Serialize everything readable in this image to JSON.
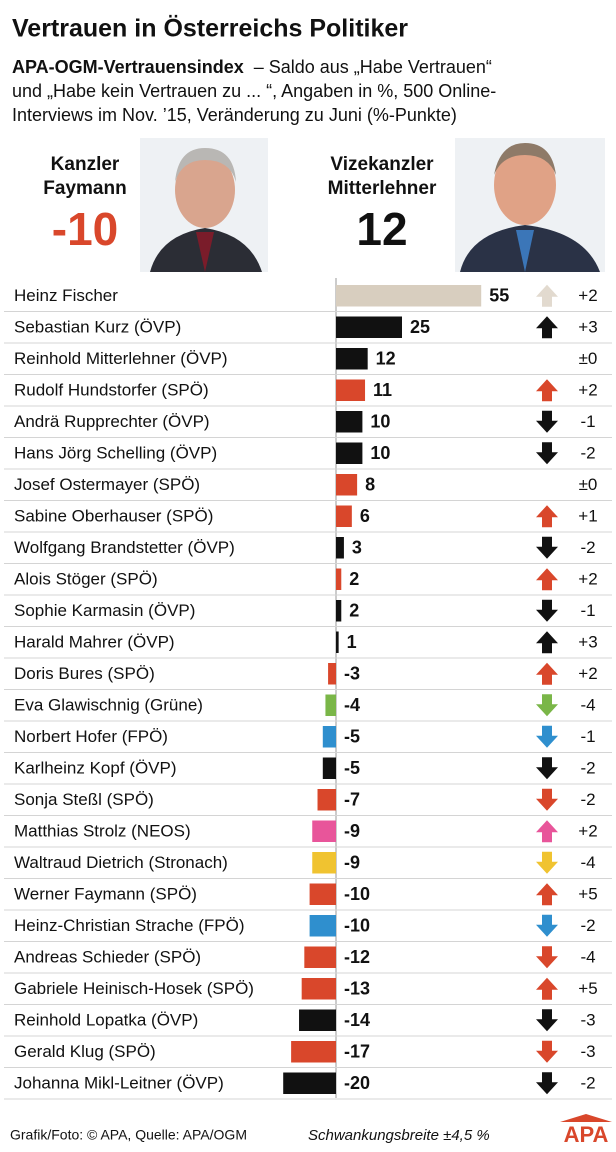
{
  "chart_data": {
    "type": "diverging-bar",
    "title": "Vertrauen in Österreichs Politiker",
    "subtitle": {
      "lead": "APA-OGM-Vertrauensindex",
      "lines": [
        "– Saldo aus „Habe Vertrauen“",
        "und „Habe kein Vertrauen zu ... “, Angaben in %, 500 Online-",
        "Interviews im Nov. ’15, Veränderung zu Juni (%-Punkte)"
      ]
    },
    "featured": [
      {
        "role": "Kanzler",
        "name": "Faymann",
        "value": -10,
        "color": "#d9472b"
      },
      {
        "role": "Vizekanzler",
        "name": "Mitterlehner",
        "value": 12,
        "color": "#111111"
      }
    ],
    "categories": [
      "Heinz Fischer",
      "Sebastian Kurz (ÖVP)",
      "Reinhold Mitterlehner (ÖVP)",
      "Rudolf Hundstorfer (SPÖ)",
      "Andrä Rupprechter (ÖVP)",
      "Hans Jörg Schelling (ÖVP)",
      "Josef Ostermayer (SPÖ)",
      "Sabine Oberhauser (SPÖ)",
      "Wolfgang Brandstetter (ÖVP)",
      "Alois Stöger (SPÖ)",
      "Sophie Karmasin (ÖVP)",
      "Harald Mahrer (ÖVP)",
      "Doris Bures (SPÖ)",
      "Eva Glawischnig (Grüne)",
      "Norbert Hofer (FPÖ)",
      "Karlheinz Kopf (ÖVP)",
      "Sonja Steßl (SPÖ)",
      "Matthias Strolz (NEOS)",
      "Waltraud Dietrich (Stronach)",
      "Werner Faymann (SPÖ)",
      "Heinz-Christian Strache (FPÖ)",
      "Andreas Schieder (SPÖ)",
      "Gabriele Heinisch-Hosek (SPÖ)",
      "Reinhold Lopatka (ÖVP)",
      "Gerald Klug (SPÖ)",
      "Johanna Mikl-Leitner (ÖVP)"
    ],
    "values": [
      55,
      25,
      12,
      11,
      10,
      10,
      8,
      6,
      3,
      2,
      2,
      1,
      -3,
      -4,
      -5,
      -5,
      -7,
      -9,
      -9,
      -10,
      -10,
      -12,
      -13,
      -14,
      -17,
      -20
    ],
    "colors": [
      "#d8cebf",
      "#111111",
      "#111111",
      "#d9472b",
      "#111111",
      "#111111",
      "#d9472b",
      "#d9472b",
      "#111111",
      "#d9472b",
      "#111111",
      "#111111",
      "#d9472b",
      "#7ab648",
      "#2f8fce",
      "#111111",
      "#d9472b",
      "#e8559a",
      "#f0c330",
      "#d9472b",
      "#2f8fce",
      "#d9472b",
      "#d9472b",
      "#111111",
      "#d9472b",
      "#111111"
    ],
    "changes": [
      2,
      3,
      0,
      2,
      -1,
      -2,
      0,
      1,
      -2,
      2,
      -1,
      3,
      2,
      -4,
      -1,
      -2,
      -2,
      2,
      -4,
      5,
      -2,
      -4,
      5,
      -3,
      -3,
      -2
    ],
    "change_labels": [
      "+2",
      "+3",
      "±0",
      "+2",
      "-1",
      "-2",
      "±0",
      "+1",
      "-2",
      "+2",
      "-1",
      "+3",
      "+2",
      "-4",
      "-1",
      "-2",
      "-2",
      "+2",
      "-4",
      "+5",
      "-2",
      "-4",
      "+5",
      "-3",
      "-3",
      "-2"
    ],
    "source": "Grafik/Foto: © APA, Quelle: APA/OGM",
    "note": "Schwankungsbreite ±4,5 %",
    "logo": "APA"
  }
}
